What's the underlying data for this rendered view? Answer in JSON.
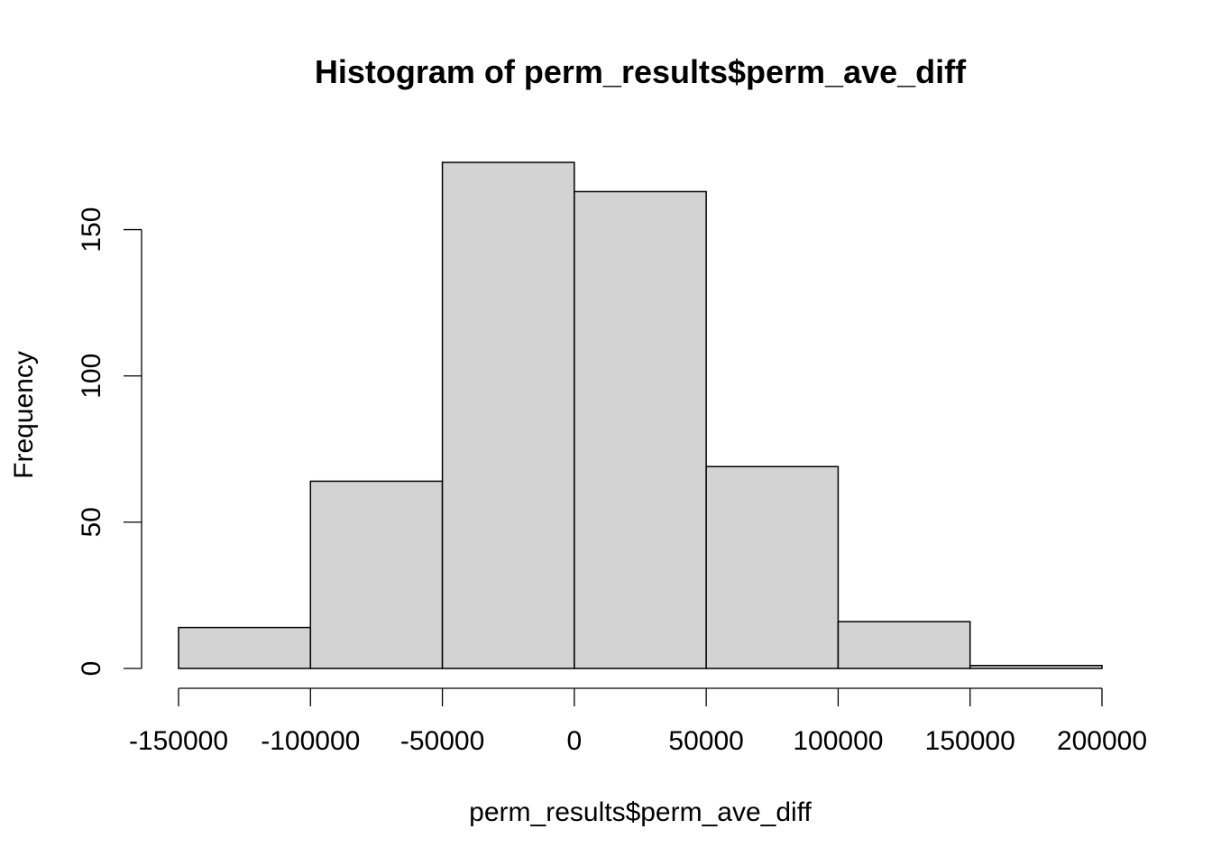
{
  "chart_data": {
    "type": "bar",
    "title": "Histogram of perm_results$perm_ave_diff",
    "xlabel": "perm_results$perm_ave_diff",
    "ylabel": "Frequency",
    "bins": [
      {
        "from": -150000,
        "to": -100000,
        "count": 14
      },
      {
        "from": -100000,
        "to": -50000,
        "count": 64
      },
      {
        "from": -50000,
        "to": 0,
        "count": 173
      },
      {
        "from": 0,
        "to": 50000,
        "count": 163
      },
      {
        "from": 50000,
        "to": 100000,
        "count": 69
      },
      {
        "from": 100000,
        "to": 150000,
        "count": 16
      },
      {
        "from": 150000,
        "to": 200000,
        "count": 1
      }
    ],
    "xlim": [
      -150000,
      200000
    ],
    "ylim": [
      0,
      173
    ],
    "x_ticks": [
      -150000,
      -100000,
      -50000,
      0,
      50000,
      100000,
      150000,
      200000
    ],
    "x_tick_labels": [
      "-150000",
      "-100000",
      "-50000",
      "0",
      "50000",
      "100000",
      "150000",
      "200000"
    ],
    "y_ticks": [
      0,
      50,
      100,
      150
    ],
    "y_tick_labels": [
      "0",
      "50",
      "100",
      "150"
    ],
    "colors": {
      "bar_fill": "#d3d3d3",
      "bar_stroke": "#000000"
    }
  }
}
